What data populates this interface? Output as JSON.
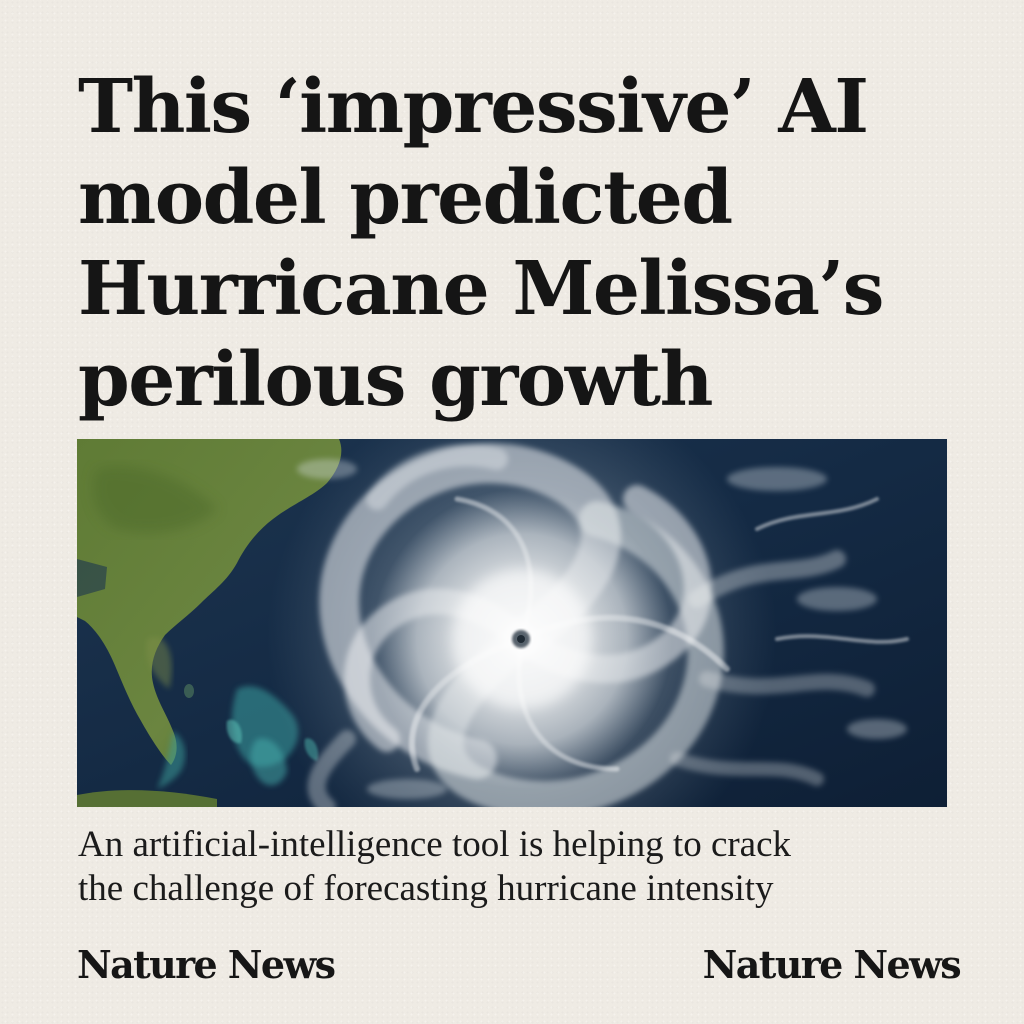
{
  "headline": {
    "lines": [
      "This ‘impressive’ AI",
      "model predicted",
      "Hurricane Melissa’s",
      "perilous growth"
    ]
  },
  "hero_image": {
    "subject": "hurricane-satellite-image"
  },
  "dek": {
    "lines": [
      "An artificial-intelligence tool is helping to crack",
      "the challenge of forecasting hurricane intensity"
    ]
  },
  "footer": {
    "brand_left": "Nature News",
    "brand_right": "Nature News"
  },
  "colors": {
    "page_background": "#efebe4",
    "text": "#161616",
    "ocean": "#13263d",
    "land": "#5e7a33",
    "shallow_water": "#3aa0a0",
    "cloud": "#f2f3f3"
  }
}
